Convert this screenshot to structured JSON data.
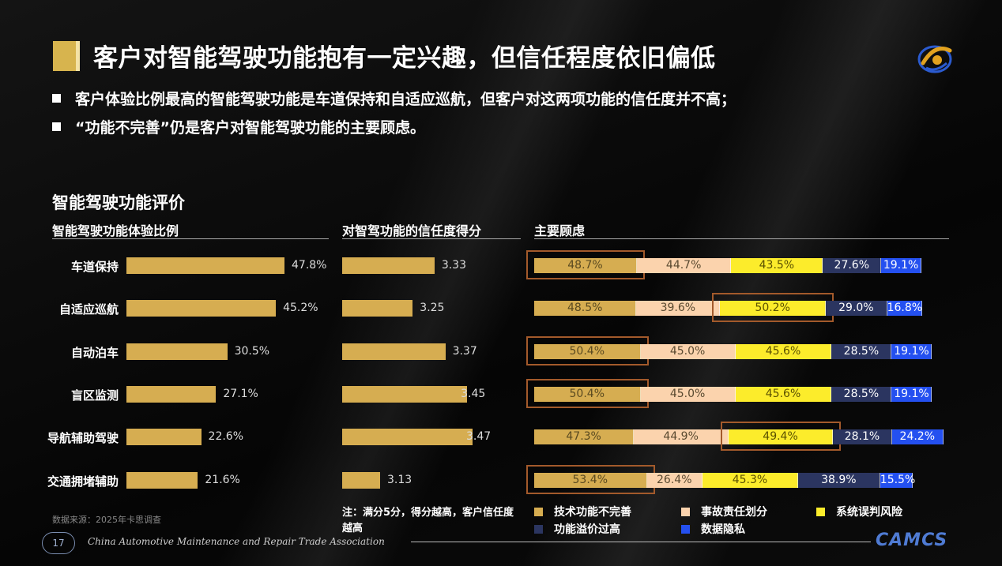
{
  "title": "客户对智能驾驶功能抱有一定兴趣，但信任程度依旧偏低",
  "bullets": [
    "客户体验比例最高的智能驾驶功能是车道保持和自适应巡航，但客户对这两项功能的信任度并不高；",
    "“功能不完善”仍是客户对智能驾驶功能的主要顾虑。"
  ],
  "section_title": "智能驾驶功能评价",
  "column_headers": {
    "experience": "智能驾驶功能体验比例",
    "trust": "对智驾功能的信任度得分",
    "concerns": "主要顾虑"
  },
  "note": "注：满分5分，得分越高，客户信任度越高",
  "source": "数据来源：2025年卡思调查",
  "footer": {
    "page_number": "17",
    "association": "China Automotive Maintenance and Repair Trade Association",
    "logo_text": "CAMCS"
  },
  "colors": {
    "gold": "#d6ad51",
    "peach": "#fbd3ad",
    "yellow": "#fcec2b",
    "navy": "#2b3560",
    "blue": "#2450f0",
    "highlight": "#a35a2b"
  },
  "chart_data": [
    {
      "type": "bar",
      "title": "智能驾驶功能体验比例",
      "unit": "%",
      "categories": [
        "车道保持",
        "自适应巡航",
        "自动泊车",
        "盲区监测",
        "导航辅助驾驶",
        "交通拥堵辅助"
      ],
      "values": [
        47.8,
        45.2,
        30.5,
        27.1,
        22.6,
        21.6
      ],
      "labels": [
        "47.8%",
        "45.2%",
        "30.5%",
        "27.1%",
        "22.6%",
        "21.6%"
      ]
    },
    {
      "type": "bar",
      "title": "对智驾功能的信任度得分",
      "categories": [
        "车道保持",
        "自适应巡航",
        "自动泊车",
        "盲区监测",
        "导航辅助驾驶",
        "交通拥堵辅助"
      ],
      "values": [
        3.33,
        3.25,
        3.37,
        3.45,
        3.47,
        3.13
      ],
      "labels": [
        "3.33",
        "3.25",
        "3.37",
        "3.45",
        "3.47",
        "3.13"
      ],
      "xlim": [
        0,
        5
      ]
    },
    {
      "type": "bar",
      "stacked": true,
      "title": "主要顾虑",
      "unit": "%",
      "categories": [
        "车道保持",
        "自适应巡航",
        "自动泊车",
        "盲区监测",
        "导航辅助驾驶",
        "交通拥堵辅助"
      ],
      "series": [
        {
          "name": "技术功能不完善",
          "color": "#d6ad51",
          "values": [
            48.7,
            48.5,
            50.4,
            50.4,
            47.3,
            53.4
          ],
          "labels": [
            "48.7%",
            "48.5%",
            "50.4%",
            "50.4%",
            "47.3%",
            "53.4%"
          ]
        },
        {
          "name": "事故责任划分",
          "color": "#fbd3ad",
          "values": [
            44.7,
            39.6,
            45.0,
            45.0,
            44.9,
            26.4
          ],
          "labels": [
            "44.7%",
            "39.6%",
            "45.0%",
            "45.0%",
            "44.9%",
            "26.4%"
          ]
        },
        {
          "name": "系统误判风险",
          "color": "#fcec2b",
          "values": [
            43.5,
            50.2,
            45.6,
            45.6,
            49.4,
            45.3
          ],
          "labels": [
            "43.5%",
            "50.2%",
            "45.6%",
            "45.6%",
            "49.4%",
            "45.3%"
          ]
        },
        {
          "name": "功能溢价过高",
          "color": "#2b3560",
          "values": [
            27.6,
            29.0,
            28.5,
            28.5,
            28.1,
            38.9
          ],
          "labels": [
            "27.6%",
            "29.0%",
            "28.5%",
            "28.5%",
            "28.1%",
            "38.9%"
          ]
        },
        {
          "name": "数据隐私",
          "color": "#2450f0",
          "values": [
            19.1,
            16.8,
            19.1,
            19.1,
            24.2,
            15.5
          ],
          "labels": [
            "19.1%",
            "16.8%",
            "19.1%",
            "19.1%",
            "24.2%",
            "15.5%"
          ]
        }
      ],
      "highlighted": [
        "车道保持:技术功能不完善",
        "自适应巡航:系统误判风险",
        "自动泊车:技术功能不完善",
        "盲区监测:技术功能不完善",
        "导航辅助驾驶:系统误判风险",
        "交通拥堵辅助:技术功能不完善"
      ],
      "legend": [
        "技术功能不完善",
        "事故责任划分",
        "系统误判风险",
        "功能溢价过高",
        "数据隐私"
      ]
    }
  ]
}
